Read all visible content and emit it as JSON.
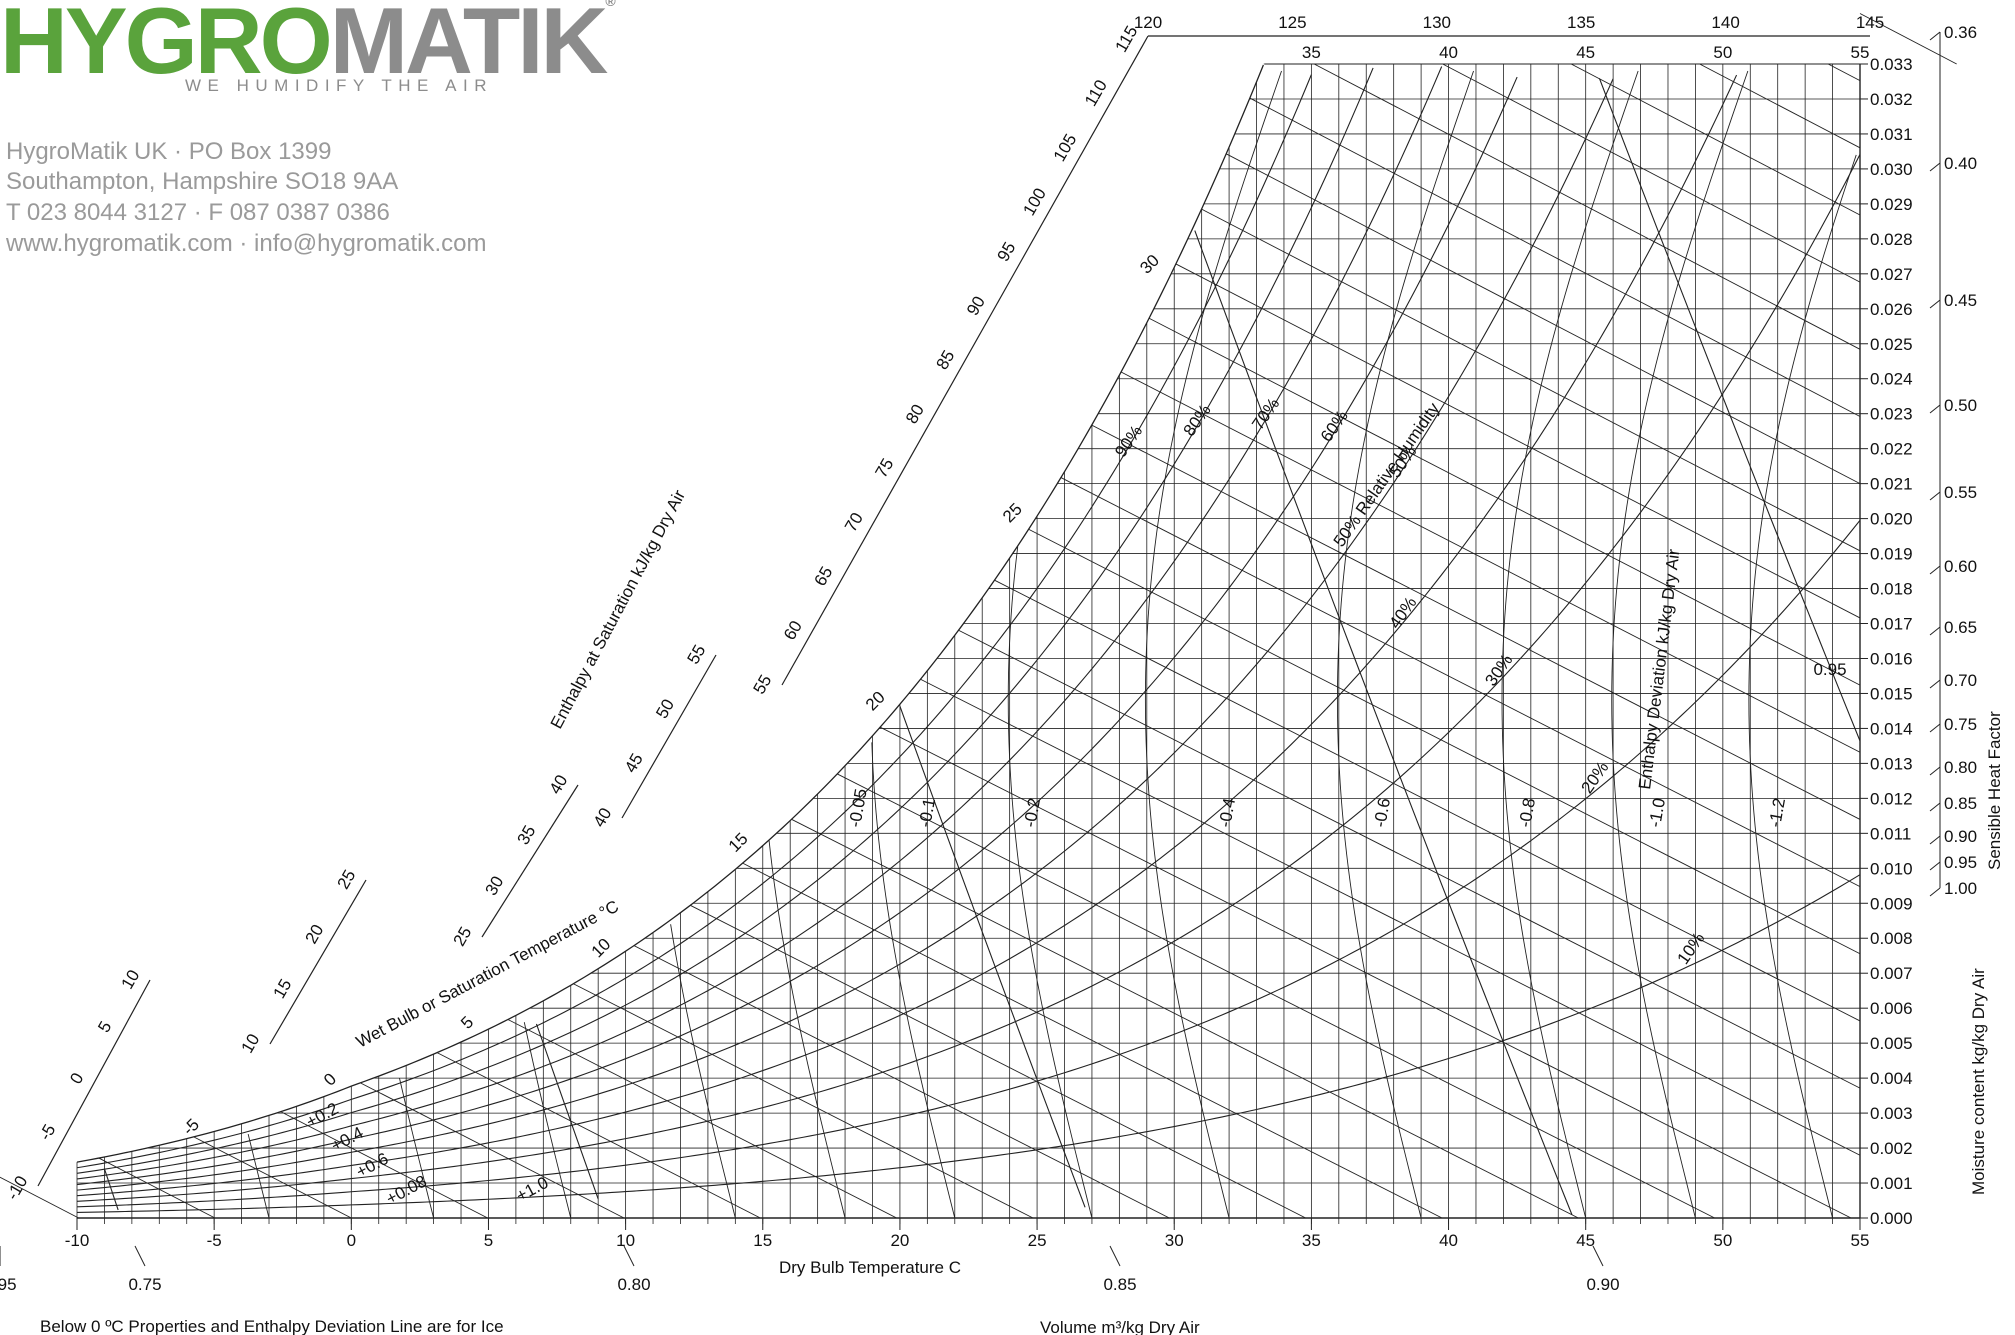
{
  "brand": {
    "logo_part1": "HYGRO",
    "logo_part2": "MATIK",
    "registered": "®",
    "tagline": "WE HUMIDIFY THE AIR"
  },
  "address": {
    "line1": "HygroMatik UK · PO Box 1399",
    "line2": "Southampton, Hampshire SO18 9AA",
    "line3": "T 023 8044 3127 · F 087 0387 0386",
    "line4": "www.hygromatik.com · info@hygromatik.com"
  },
  "chart_data": {
    "type": "psychrometric",
    "xlabel": "Dry Bulb Temperature   C",
    "ylabel": "Moisture content kg/kg Dry Air",
    "xlim": [
      -10,
      55
    ],
    "ylim": [
      0,
      0.033
    ],
    "x_ticks": [
      -10,
      -5,
      0,
      5,
      10,
      15,
      20,
      25,
      30,
      35,
      40,
      45,
      50,
      55
    ],
    "y_ticks": [
      "0.000",
      "0.001",
      "0.002",
      "0.003",
      "0.004",
      "0.005",
      "0.006",
      "0.007",
      "0.008",
      "0.009",
      "0.010",
      "0.011",
      "0.012",
      "0.013",
      "0.014",
      "0.015",
      "0.016",
      "0.017",
      "0.018",
      "0.019",
      "0.020",
      "0.021",
      "0.022",
      "0.023",
      "0.024",
      "0.025",
      "0.026",
      "0.027",
      "0.028",
      "0.029",
      "0.030",
      "0.031",
      "0.032",
      "0.033"
    ],
    "top_axis_ticks": [
      35,
      40,
      45,
      50,
      55
    ],
    "enthalpy_title": "Enthalpy at Saturation kJ/kg Dry Air",
    "enthalpy_scales": [
      {
        "labels": [
          -10,
          -5,
          0,
          5,
          10
        ]
      },
      {
        "labels": [
          10,
          15,
          20,
          25
        ]
      },
      {
        "labels": [
          25,
          30,
          35,
          40
        ]
      },
      {
        "labels": [
          40,
          45,
          50,
          55
        ]
      },
      {
        "labels": [
          55,
          60,
          65,
          70,
          75,
          80,
          85,
          90,
          95,
          100,
          105,
          110,
          115
        ]
      },
      {
        "labels": [
          120,
          125,
          130,
          135,
          140,
          145
        ]
      }
    ],
    "wetbulb_title": "Wet Bulb or Saturation Temperature °C",
    "wetbulb_lines": [
      -5,
      0,
      5,
      10,
      15,
      20,
      25,
      30
    ],
    "rh_title": "Relative Humidity",
    "rh_curves": [
      {
        "rh": 10,
        "label": "10%"
      },
      {
        "rh": 20,
        "label": "20%"
      },
      {
        "rh": 30,
        "label": "30%"
      },
      {
        "rh": 40,
        "label": "40%"
      },
      {
        "rh": 50,
        "label": "50%"
      },
      {
        "rh": 60,
        "label": "60%"
      },
      {
        "rh": 70,
        "label": "70%"
      },
      {
        "rh": 80,
        "label": "80%"
      },
      {
        "rh": 90,
        "label": "90%"
      }
    ],
    "deviation_title": "Enthalpy Deviation kJ/kg Dry Air",
    "deviation_labels": [
      "+0.2",
      "+0.4",
      "+0.6",
      "+0.08",
      "+1.0",
      "-0.05",
      "-0.1",
      "-0.2",
      "-0.4",
      "-0.6",
      "-0.8",
      "-1.0",
      "-1.2"
    ],
    "volume_title": "Volume m³/kg Dry Air",
    "volume_lines": [
      "0.75",
      "0.80",
      "0.85",
      "0.90",
      "0.95"
    ],
    "shf_title": "Sensible Heat Factor",
    "shf_ticks": [
      "0.36",
      "0.40",
      "0.45",
      "0.50",
      "0.55",
      "0.60",
      "0.65",
      "0.70",
      "0.75",
      "0.80",
      "0.85",
      "0.90",
      "0.95",
      "1.00"
    ],
    "footnote": "Below 0 ºC Properties and Enthalpy Deviation Line are for Ice"
  }
}
